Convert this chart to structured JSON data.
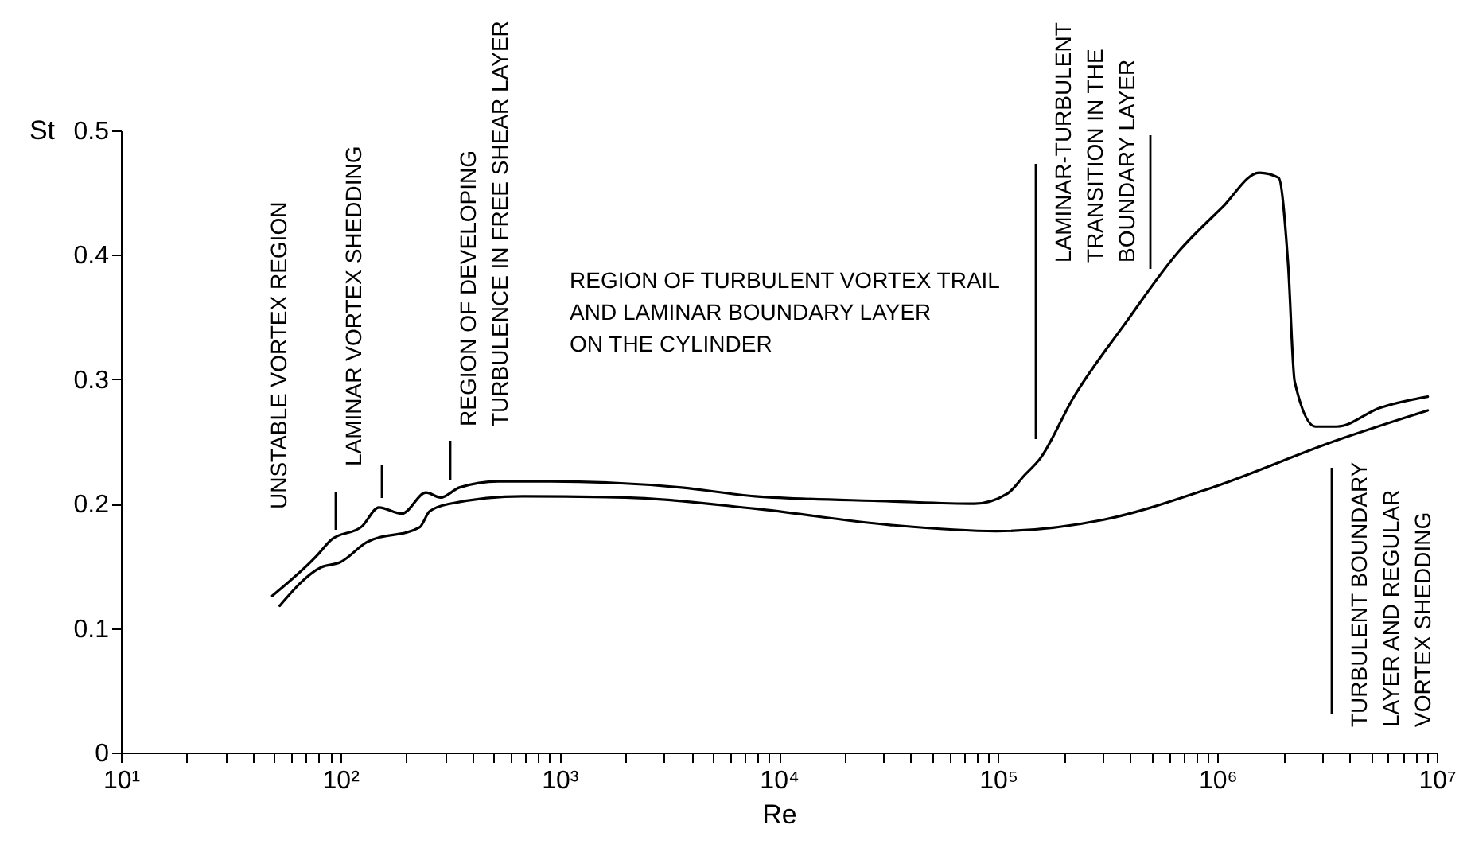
{
  "chart_data": {
    "type": "line",
    "xlabel": "Re",
    "ylabel": "St",
    "log": "x",
    "xlim": [
      10,
      10000000
    ],
    "ylim": [
      0,
      0.5
    ],
    "xticks": [
      {
        "value": 10,
        "label": "10¹"
      },
      {
        "value": 20,
        "label": null
      },
      {
        "value": 30,
        "label": null
      },
      {
        "value": 40,
        "label": null
      },
      {
        "value": 50,
        "label": null
      },
      {
        "value": 60,
        "label": null
      },
      {
        "value": 70,
        "label": null
      },
      {
        "value": 80,
        "label": null
      },
      {
        "value": 90,
        "label": null
      },
      {
        "value": 100,
        "label": "10²"
      },
      {
        "value": 200,
        "label": null
      },
      {
        "value": 300,
        "label": null
      },
      {
        "value": 400,
        "label": null
      },
      {
        "value": 500,
        "label": null
      },
      {
        "value": 600,
        "label": null
      },
      {
        "value": 700,
        "label": null
      },
      {
        "value": 800,
        "label": null
      },
      {
        "value": 900,
        "label": null
      },
      {
        "value": 1000,
        "label": "10³"
      },
      {
        "value": 2000,
        "label": null
      },
      {
        "value": 3000,
        "label": null
      },
      {
        "value": 4000,
        "label": null
      },
      {
        "value": 5000,
        "label": null
      },
      {
        "value": 6000,
        "label": null
      },
      {
        "value": 7000,
        "label": null
      },
      {
        "value": 8000,
        "label": null
      },
      {
        "value": 9000,
        "label": null
      },
      {
        "value": 10000,
        "label": "10⁴"
      },
      {
        "value": 20000,
        "label": null
      },
      {
        "value": 30000,
        "label": null
      },
      {
        "value": 40000,
        "label": null
      },
      {
        "value": 50000,
        "label": null
      },
      {
        "value": 60000,
        "label": null
      },
      {
        "value": 70000,
        "label": null
      },
      {
        "value": 80000,
        "label": null
      },
      {
        "value": 90000,
        "label": null
      },
      {
        "value": 100000,
        "label": "10⁵"
      },
      {
        "value": 200000,
        "label": null
      },
      {
        "value": 300000,
        "label": null
      },
      {
        "value": 400000,
        "label": null
      },
      {
        "value": 500000,
        "label": null
      },
      {
        "value": 600000,
        "label": null
      },
      {
        "value": 700000,
        "label": null
      },
      {
        "value": 800000,
        "label": null
      },
      {
        "value": 900000,
        "label": null
      },
      {
        "value": 1000000,
        "label": "10⁶"
      },
      {
        "value": 2000000,
        "label": null
      },
      {
        "value": 3000000,
        "label": null
      },
      {
        "value": 4000000,
        "label": null
      },
      {
        "value": 5000000,
        "label": null
      },
      {
        "value": 6000000,
        "label": null
      },
      {
        "value": 7000000,
        "label": null
      },
      {
        "value": 8000000,
        "label": null
      },
      {
        "value": 9000000,
        "label": null
      },
      {
        "value": 10000000,
        "label": "10⁷"
      }
    ],
    "yticks": [
      0,
      0.1,
      0.2,
      0.3,
      0.4,
      0.5
    ],
    "series": [
      {
        "color": "#000000",
        "x": [
          49,
          78,
          91,
          126,
          150,
          191,
          246,
          287,
          349,
          525,
          912,
          3600,
          7800,
          32000,
          78000,
          110000,
          132000,
          155000,
          220000,
          380000,
          660000,
          1050000,
          1550000,
          1900000,
          2100000,
          2250000,
          2800000,
          3500000,
          5500000,
          9100000
        ],
        "values": [
          0.126,
          0.158,
          0.171,
          0.182,
          0.197,
          0.192,
          0.209,
          0.205,
          0.213,
          0.218,
          0.218,
          0.213,
          0.206,
          0.202,
          0.2,
          0.208,
          0.223,
          0.236,
          0.285,
          0.345,
          0.402,
          0.438,
          0.466,
          0.462,
          0.392,
          0.298,
          0.262,
          0.262,
          0.277,
          0.286
        ]
      },
      {
        "color": "#000000",
        "x": [
          53,
          82,
          100,
          132,
          230,
          256,
          316,
          680,
          2000,
          7800,
          32000,
          98000,
          300000,
          910000,
          3500000,
          9100000
        ],
        "values": [
          0.118,
          0.149,
          0.153,
          0.169,
          0.181,
          0.194,
          0.2,
          0.206,
          0.205,
          0.196,
          0.183,
          0.178,
          0.187,
          0.212,
          0.251,
          0.275
        ]
      }
    ],
    "annotations": [
      "UNSTABLE VORTEX REGION",
      "LAMINAR VORTEX SHEDDING",
      "REGION OF DEVELOPING\nTURBULENCE IN FREE SHEAR LAYER",
      "REGION OF TURBULENT VORTEX TRAIL\nAND LAMINAR BOUNDARY LAYER\nON THE CYLINDER",
      "LAMINAR-TURBULENT\nTRANSITION IN THE\nBOUNDARY LAYER",
      "TURBULENT BOUNDARY\nLAYER AND REGULAR\nVORTEX SHEDDING"
    ]
  }
}
